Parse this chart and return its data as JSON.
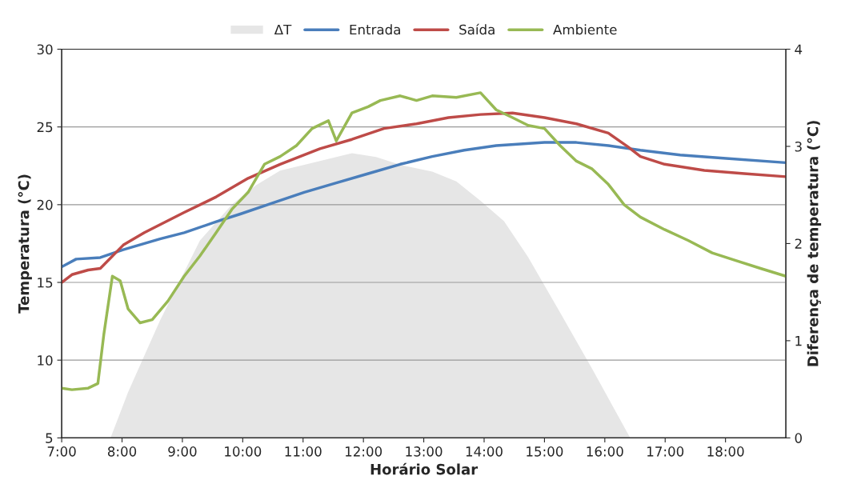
{
  "chart_data": {
    "type": "line",
    "xlabel": "Horário Solar",
    "ylabel": "Temperatura (°C)",
    "y2label": "Diferença de temperatura (°C)",
    "xlim": [
      7,
      19
    ],
    "xticks": [
      {
        "value": 7,
        "label": "7:00"
      },
      {
        "value": 8,
        "label": "8:00"
      },
      {
        "value": 9,
        "label": "9:00"
      },
      {
        "value": 10,
        "label": "10:00"
      },
      {
        "value": 11,
        "label": "11:00"
      },
      {
        "value": 12,
        "label": "12:00"
      },
      {
        "value": 13,
        "label": "13:00"
      },
      {
        "value": 14,
        "label": "14:00"
      },
      {
        "value": 15,
        "label": "15:00"
      },
      {
        "value": 16,
        "label": "16:00"
      },
      {
        "value": 17,
        "label": "17:00"
      },
      {
        "value": 18,
        "label": "18:00"
      }
    ],
    "ylim": [
      5,
      30
    ],
    "yticks": [
      5,
      10,
      15,
      20,
      25,
      30
    ],
    "y2lim": [
      0,
      4
    ],
    "y2ticks": [
      0,
      1,
      2,
      3,
      4
    ],
    "grid": "y",
    "legend": "top",
    "marker": "none",
    "line_style": "solid",
    "series": [
      {
        "name": "ΔT",
        "type": "area",
        "axis": "y2",
        "color": "#e6e6e6",
        "x": [
          7.81,
          8.1,
          8.63,
          9.29,
          9.82,
          10.22,
          10.62,
          11.02,
          11.28,
          11.55,
          11.81,
          12.21,
          12.61,
          13.14,
          13.54,
          13.94,
          14.33,
          14.73,
          15.26,
          15.79,
          16.19,
          16.42
        ],
        "values": [
          0,
          0.47,
          1.21,
          2.03,
          2.4,
          2.6,
          2.75,
          2.81,
          2.85,
          2.89,
          2.93,
          2.89,
          2.81,
          2.74,
          2.64,
          2.44,
          2.23,
          1.86,
          1.29,
          0.71,
          0.26,
          0
        ]
      },
      {
        "name": "Entrada",
        "color": "#4a7ebb",
        "x": [
          7.0,
          7.24,
          7.64,
          8.02,
          8.63,
          9.03,
          9.56,
          9.96,
          10.49,
          11.02,
          11.55,
          12.08,
          12.61,
          13.14,
          13.67,
          14.2,
          15.0,
          15.53,
          16.06,
          16.59,
          17.25,
          17.92,
          19.0
        ],
        "values": [
          16.0,
          16.5,
          16.6,
          17.1,
          17.8,
          18.2,
          18.9,
          19.4,
          20.1,
          20.8,
          21.4,
          22.0,
          22.6,
          23.1,
          23.5,
          23.8,
          24.0,
          24.0,
          23.8,
          23.5,
          23.2,
          23.0,
          22.7
        ]
      },
      {
        "name": "Saída",
        "color": "#be4b48",
        "x": [
          7.0,
          7.17,
          7.44,
          7.64,
          8.02,
          8.37,
          9.03,
          9.56,
          10.09,
          10.62,
          11.28,
          11.81,
          12.34,
          12.88,
          13.41,
          13.94,
          14.47,
          15.0,
          15.53,
          16.06,
          16.39,
          16.59,
          16.99,
          17.65,
          18.31,
          19.0
        ],
        "values": [
          15.0,
          15.5,
          15.8,
          15.9,
          17.4,
          18.2,
          19.5,
          20.5,
          21.7,
          22.6,
          23.6,
          24.2,
          24.9,
          25.2,
          25.6,
          25.8,
          25.9,
          25.6,
          25.2,
          24.6,
          23.7,
          23.1,
          22.6,
          22.2,
          22.0,
          21.8
        ]
      },
      {
        "name": "Ambiente",
        "color": "#98b954",
        "x": [
          7.0,
          7.17,
          7.44,
          7.6,
          7.7,
          7.84,
          7.97,
          8.1,
          8.3,
          8.5,
          8.76,
          9.03,
          9.29,
          9.56,
          9.82,
          10.09,
          10.36,
          10.62,
          10.89,
          11.15,
          11.42,
          11.55,
          11.81,
          12.08,
          12.28,
          12.61,
          12.88,
          13.14,
          13.54,
          13.94,
          14.2,
          14.47,
          14.73,
          15.0,
          15.26,
          15.53,
          15.79,
          16.06,
          16.32,
          16.59,
          16.99,
          17.38,
          17.78,
          18.18,
          18.58,
          19.0
        ],
        "values": [
          8.2,
          8.1,
          8.2,
          8.5,
          11.7,
          15.4,
          15.1,
          13.3,
          12.4,
          12.6,
          13.8,
          15.4,
          16.7,
          18.2,
          19.7,
          20.8,
          22.6,
          23.1,
          23.8,
          24.9,
          25.4,
          24.1,
          25.9,
          26.3,
          26.7,
          27.0,
          26.7,
          27.0,
          26.9,
          27.2,
          26.1,
          25.6,
          25.1,
          24.9,
          23.8,
          22.8,
          22.3,
          21.3,
          20.0,
          19.2,
          18.4,
          17.7,
          16.9,
          16.4,
          15.9,
          15.4
        ]
      }
    ]
  }
}
